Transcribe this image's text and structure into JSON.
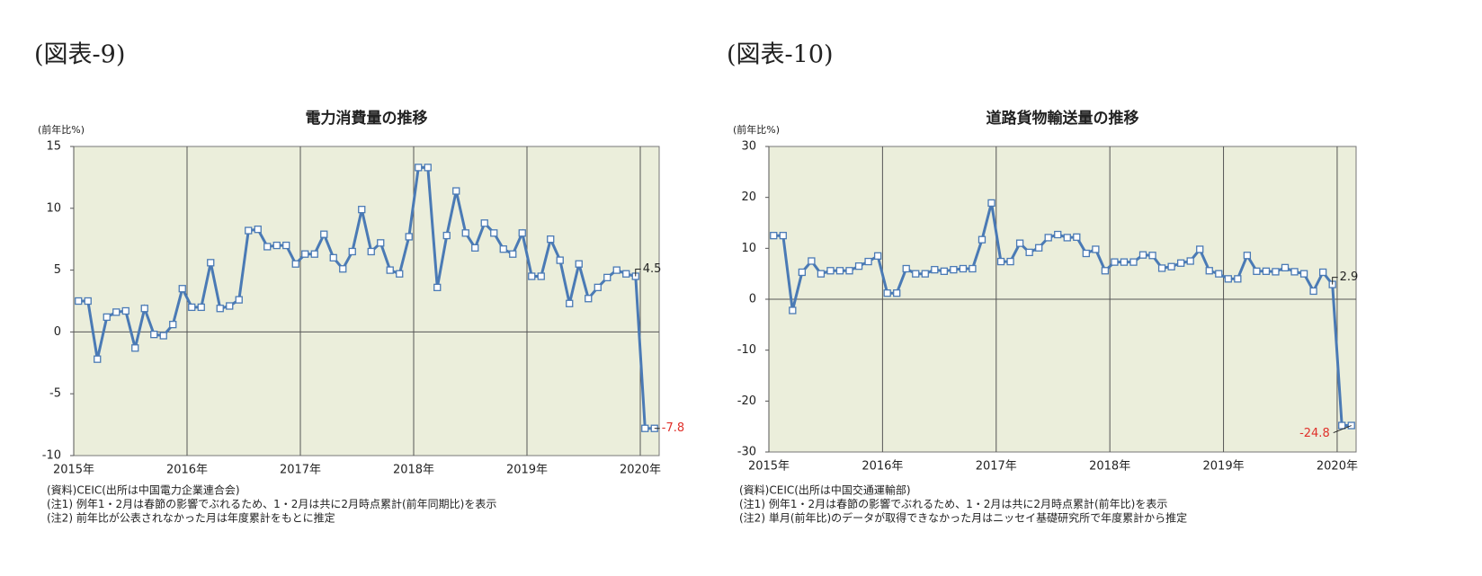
{
  "chart_data": [
    {
      "type": "line",
      "figure_label": "(図表-9)",
      "title": "電力消費量の推移",
      "y_label": "(前年比%)",
      "categories": [
        "2015年",
        null,
        null,
        null,
        null,
        null,
        null,
        null,
        null,
        null,
        null,
        null,
        "2016年",
        null,
        null,
        null,
        null,
        null,
        null,
        null,
        null,
        null,
        null,
        null,
        "2017年",
        null,
        null,
        null,
        null,
        null,
        null,
        null,
        null,
        null,
        null,
        null,
        "2018年",
        null,
        null,
        null,
        null,
        null,
        null,
        null,
        null,
        null,
        null,
        null,
        "2019年",
        null,
        null,
        null,
        null,
        null,
        null,
        null,
        null,
        null,
        null,
        null,
        "2020年",
        null
      ],
      "values": [
        2.5,
        2.5,
        -2.2,
        1.2,
        1.6,
        1.7,
        -1.3,
        1.9,
        -0.2,
        -0.3,
        0.6,
        3.5,
        2.0,
        2.0,
        5.6,
        1.9,
        2.1,
        2.6,
        8.2,
        8.3,
        6.9,
        7.0,
        7.0,
        5.5,
        6.3,
        6.3,
        7.9,
        6.0,
        5.1,
        6.5,
        9.9,
        6.5,
        7.2,
        5.0,
        4.7,
        7.7,
        13.3,
        13.3,
        3.6,
        7.8,
        11.4,
        8.0,
        6.8,
        8.8,
        8.0,
        6.7,
        6.3,
        8.0,
        4.5,
        4.5,
        7.5,
        5.8,
        2.3,
        5.5,
        2.7,
        3.6,
        4.4,
        5.0,
        4.7,
        4.5,
        -7.8,
        -7.8
      ],
      "color": "#4a7ab5",
      "ylim": [
        -10,
        15
      ],
      "yticks": [
        -10,
        -5,
        0,
        5,
        10,
        15
      ],
      "notes": [
        "(資料)CEIC(出所は中国電力企業連合会)",
        "(注1) 例年1・2月は春節の影響でぶれるため、1・2月は共に2月時点累計(前年同期比)を表示",
        "(注2) 前年比が公表されなかった月は年度累計をもとに推定"
      ]
    },
    {
      "type": "line",
      "figure_label": "(図表-10)",
      "title": "道路貨物輸送量の推移",
      "y_label": "(前年比%)",
      "categories": [
        "2015年",
        null,
        null,
        null,
        null,
        null,
        null,
        null,
        null,
        null,
        null,
        null,
        "2016年",
        null,
        null,
        null,
        null,
        null,
        null,
        null,
        null,
        null,
        null,
        null,
        "2017年",
        null,
        null,
        null,
        null,
        null,
        null,
        null,
        null,
        null,
        null,
        null,
        "2018年",
        null,
        null,
        null,
        null,
        null,
        null,
        null,
        null,
        null,
        null,
        null,
        "2019年",
        null,
        null,
        null,
        null,
        null,
        null,
        null,
        null,
        null,
        null,
        null,
        "2020年",
        null
      ],
      "values": [
        12.5,
        12.5,
        -2.2,
        5.3,
        7.5,
        5.0,
        5.6,
        5.6,
        5.6,
        6.5,
        7.4,
        8.5,
        1.2,
        1.2,
        6.0,
        5.0,
        5.0,
        5.8,
        5.5,
        5.8,
        6.0,
        6.0,
        11.7,
        18.9,
        7.4,
        7.4,
        11.0,
        9.2,
        10.1,
        12.1,
        12.7,
        12.1,
        12.2,
        9.0,
        9.8,
        5.6,
        7.3,
        7.3,
        7.3,
        8.7,
        8.6,
        6.1,
        6.4,
        7.1,
        7.5,
        9.8,
        5.6,
        5.0,
        4.0,
        4.0,
        8.6,
        5.5,
        5.5,
        5.4,
        6.2,
        5.4,
        5.0,
        1.6,
        5.3,
        2.9,
        -24.8,
        -24.8
      ],
      "color": "#4a7ab5",
      "ylim": [
        -30,
        30
      ],
      "yticks": [
        -30,
        -20,
        -10,
        0,
        10,
        20,
        30
      ],
      "notes": [
        "(資料)CEIC(出所は中国交通運輸部)",
        "(注1) 例年1・2月は春節の影響でぶれるため、1・2月は共に2月時点累計(前年比)を表示",
        "(注2) 単月(前年比)のデータが取得できなかった月はニッセイ基礎研究所で年度累計から推定"
      ]
    }
  ]
}
